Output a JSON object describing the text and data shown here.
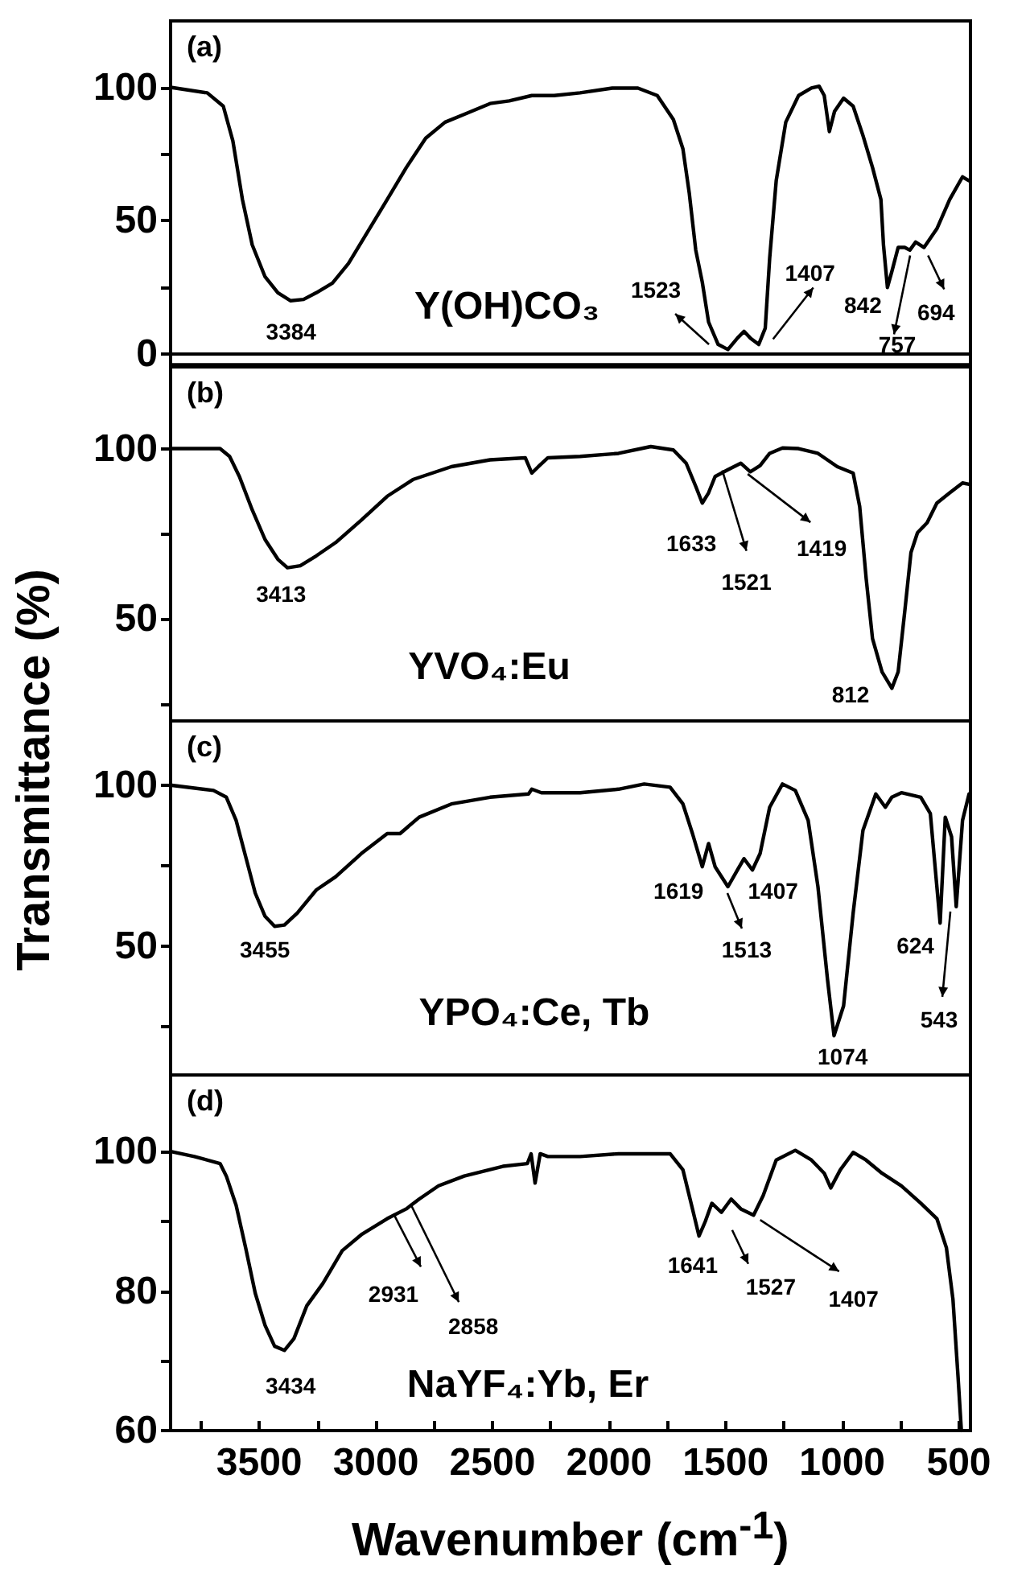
{
  "chart_data": [
    {
      "type": "line",
      "ylabel": "Transmittance (%)",
      "color": "#000000",
      "xlim": [
        3880,
        450
      ],
      "ylim": [
        -4,
        125
      ],
      "yticks": [
        0,
        {
          "value": 25,
          "label": null
        },
        50,
        {
          "value": 75,
          "label": null
        },
        100
      ],
      "tick_labels": "y",
      "annotations": [
        "(a)",
        "Y(OH)CO₃",
        {
          "text": "3384",
          "x": 3384,
          "y": 20
        },
        {
          "text": "1523",
          "x": 1523,
          "y": 3
        },
        {
          "text": "1407",
          "x": 1407,
          "y": 5
        },
        {
          "text": "842",
          "x": 842,
          "y": 25
        },
        {
          "text": "757",
          "x": 757,
          "y": 40
        },
        {
          "text": "694",
          "x": 694,
          "y": 40
        }
      ],
      "x": [
        3875,
        3723,
        3654,
        3613,
        3572,
        3530,
        3475,
        3420,
        3365,
        3310,
        3255,
        3186,
        3117,
        3034,
        2951,
        2869,
        2786,
        2703,
        2620,
        2510,
        2428,
        2331,
        2235,
        2124,
        1986,
        1876,
        1793,
        1724,
        1683,
        1656,
        1628,
        1600,
        1573,
        1532,
        1490,
        1449,
        1421,
        1394,
        1358,
        1330,
        1311,
        1283,
        1242,
        1187,
        1132,
        1099,
        1077,
        1055,
        1033,
        994,
        953,
        911,
        870,
        834,
        823,
        806,
        787,
        760,
        732,
        710,
        685,
        649,
        594,
        539,
        484,
        456
      ],
      "values": [
        100,
        98,
        93,
        80,
        58,
        41,
        29,
        23,
        20,
        20.5,
        23,
        26.6,
        34,
        46,
        58,
        70,
        81,
        87,
        90,
        94,
        95,
        97,
        97,
        98,
        99.8,
        99.8,
        97,
        88,
        77,
        60.5,
        39,
        27,
        12,
        3.6,
        1.7,
        6,
        8.5,
        6,
        3.6,
        9.7,
        36,
        65,
        87,
        97,
        99.8,
        100.5,
        97,
        83.5,
        91,
        96,
        93,
        82,
        70,
        58,
        41,
        25,
        31,
        40,
        40,
        39,
        42,
        40,
        47,
        58,
        66.5,
        65
      ]
    },
    {
      "type": "line",
      "color": "#000000",
      "xlim": [
        3880,
        450
      ],
      "ylim": [
        20,
        124
      ],
      "yticks": [
        {
          "value": 25,
          "label": null
        },
        50,
        {
          "value": 75,
          "label": null
        },
        100
      ],
      "tick_labels": "y",
      "annotations": [
        "(b)",
        "YVO₄:Eu",
        {
          "text": "3413",
          "x": 3413,
          "y": 65
        },
        {
          "text": "1633",
          "x": 1633,
          "y": 84
        },
        {
          "text": "1521",
          "x": 1521,
          "y": 95
        },
        {
          "text": "1419",
          "x": 1419,
          "y": 93
        },
        {
          "text": "812",
          "x": 812,
          "y": 29.6
        }
      ],
      "x": [
        3875,
        3668,
        3627,
        3585,
        3530,
        3475,
        3420,
        3379,
        3324,
        3255,
        3172,
        3062,
        2951,
        2841,
        2676,
        2510,
        2359,
        2331,
        2303,
        2262,
        2124,
        1959,
        1821,
        1724,
        1669,
        1628,
        1600,
        1573,
        1545,
        1490,
        1435,
        1394,
        1352,
        1311,
        1256,
        1187,
        1104,
        1021,
        953,
        925,
        897,
        870,
        829,
        787,
        760,
        732,
        705,
        677,
        636,
        594,
        539,
        484,
        456
      ],
      "values": [
        100,
        100,
        97.7,
        91.8,
        82,
        73.3,
        67.5,
        65,
        65.6,
        68.5,
        72.4,
        79,
        86,
        90.9,
        94.7,
        96.7,
        97.3,
        92.8,
        94.7,
        97.3,
        97.7,
        98.6,
        100.6,
        99.6,
        95.7,
        88.9,
        84,
        87,
        91.8,
        93.8,
        95.7,
        93.2,
        95,
        98.6,
        100.2,
        100,
        98.6,
        94.7,
        92.8,
        83,
        61.7,
        44.2,
        34.4,
        29.6,
        34.4,
        52,
        69.5,
        75.3,
        78.2,
        84,
        87,
        89.9,
        89.5
      ]
    },
    {
      "type": "line",
      "color": "#000000",
      "xlim": [
        3880,
        450
      ],
      "ylim": [
        10,
        120
      ],
      "yticks": [
        {
          "value": 25,
          "label": null
        },
        50,
        {
          "value": 75,
          "label": null
        },
        100
      ],
      "tick_labels": "y",
      "annotations": [
        "(c)",
        "YPO₄:Ce, Tb",
        {
          "text": "3455",
          "x": 3455,
          "y": 56
        },
        {
          "text": "1619",
          "x": 1619,
          "y": 74.7
        },
        {
          "text": "1513",
          "x": 1513,
          "y": 68.5
        },
        {
          "text": "1407",
          "x": 1407,
          "y": 73.7
        },
        {
          "text": "1074",
          "x": 1074,
          "y": 22.2
        },
        {
          "text": "624",
          "x": 624,
          "y": 57.2
        },
        {
          "text": "543",
          "x": 543,
          "y": 62.3
        }
      ],
      "x": [
        3875,
        3696,
        3641,
        3599,
        3558,
        3517,
        3475,
        3434,
        3392,
        3337,
        3255,
        3172,
        3062,
        2951,
        2896,
        2814,
        2676,
        2510,
        2345,
        2331,
        2290,
        2124,
        1959,
        1849,
        1738,
        1683,
        1642,
        1600,
        1573,
        1545,
        1490,
        1449,
        1421,
        1385,
        1352,
        1311,
        1256,
        1201,
        1146,
        1104,
        1063,
        1035,
        994,
        953,
        911,
        856,
        815,
        787,
        746,
        663,
        622,
        594,
        580,
        558,
        531,
        511,
        484,
        456
      ],
      "values": [
        100,
        98.4,
        96.3,
        89.1,
        77.8,
        66.5,
        59.3,
        56.2,
        56.6,
        60.3,
        67.5,
        71.6,
        78.8,
        85,
        85,
        90.1,
        94.2,
        96.3,
        97.3,
        98.8,
        97.7,
        97.7,
        98.8,
        100.4,
        99.4,
        94.2,
        85,
        74.7,
        81.9,
        74.7,
        68.5,
        73.7,
        77.2,
        73.7,
        78.8,
        93.2,
        100.4,
        98.4,
        89.1,
        68.5,
        39.7,
        22.2,
        31.5,
        60.3,
        86,
        97.3,
        93.2,
        96.3,
        97.7,
        96.3,
        91.2,
        68.5,
        57.2,
        90.1,
        84,
        62.3,
        89.1,
        97.3
      ]
    },
    {
      "type": "line",
      "xlabel": "Wavenumber (cm$^{-1}$)",
      "color": "#000000",
      "xlim": [
        3880,
        450
      ],
      "ylim": [
        60,
        111
      ],
      "yticks": [
        60,
        {
          "value": 70,
          "label": null
        },
        80,
        {
          "value": 90,
          "label": null
        },
        100
      ],
      "xticks": [
        500,
        {
          "value": 750,
          "label": null
        },
        1000,
        {
          "value": 1250,
          "label": null
        },
        1500,
        {
          "value": 1750,
          "label": null
        },
        2000,
        {
          "value": 2250,
          "label": null
        },
        2500,
        {
          "value": 2750,
          "label": null
        },
        3000,
        {
          "value": 3250,
          "label": null
        },
        3500,
        {
          "value": 3750,
          "label": null
        }
      ],
      "annotations": [
        "(d)",
        "NaYF₄:Yb, Er",
        {
          "text": "3434",
          "x": 3434,
          "y": 71.5
        },
        {
          "text": "2931",
          "x": 2931,
          "y": 91.8
        },
        {
          "text": "2858",
          "x": 2858,
          "y": 93.2
        },
        {
          "text": "1641",
          "x": 1641,
          "y": 87.9
        },
        {
          "text": "1527",
          "x": 1527,
          "y": 91.3
        },
        {
          "text": "1407",
          "x": 1407,
          "y": 90.9
        }
      ],
      "x": [
        3875,
        3778,
        3668,
        3641,
        3599,
        3558,
        3517,
        3475,
        3434,
        3392,
        3351,
        3296,
        3227,
        3144,
        3062,
        2951,
        2869,
        2814,
        2731,
        2621,
        2455,
        2350,
        2334,
        2317,
        2295,
        2262,
        2124,
        1959,
        1738,
        1683,
        1642,
        1614,
        1587,
        1559,
        1518,
        1476,
        1435,
        1380,
        1339,
        1283,
        1201,
        1132,
        1077,
        1049,
        1008,
        953,
        898,
        829,
        746,
        663,
        594,
        553,
        525,
        503,
        489
      ],
      "values": [
        100,
        99.3,
        98.3,
        96.5,
        92.3,
        86.2,
        79.7,
        75.1,
        72.1,
        71.5,
        73.2,
        77.9,
        81.1,
        85.8,
        88.1,
        90.4,
        91.8,
        93.2,
        95.1,
        96.5,
        97.9,
        98.3,
        99.7,
        95.5,
        99.7,
        99.3,
        99.3,
        99.7,
        99.7,
        97.4,
        91.8,
        87.9,
        90,
        92.6,
        91.3,
        93.2,
        91.8,
        90.9,
        93.7,
        98.8,
        100.2,
        98.8,
        96.9,
        94.8,
        97.4,
        99.9,
        98.8,
        96.9,
        95.1,
        92.6,
        90.4,
        86.2,
        78.8,
        67.6,
        60
      ]
    }
  ]
}
